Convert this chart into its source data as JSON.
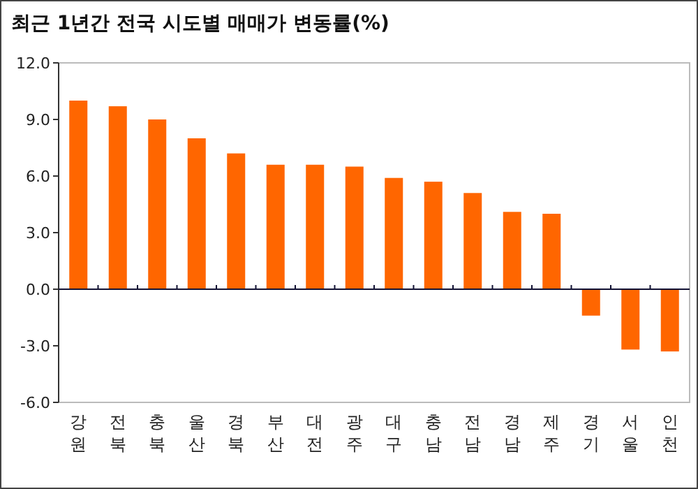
{
  "chart_data": {
    "type": "bar",
    "title": "최근 1년간 전국 시도별 매매가 변동률(%)",
    "categories": [
      "강원",
      "전북",
      "충북",
      "울산",
      "경북",
      "부산",
      "대전",
      "광주",
      "대구",
      "충남",
      "전남",
      "경남",
      "제주",
      "경기",
      "서울",
      "인천"
    ],
    "values": [
      10.0,
      9.7,
      9.0,
      8.0,
      7.2,
      6.6,
      6.6,
      6.5,
      5.9,
      5.7,
      5.1,
      4.1,
      4.0,
      -1.4,
      -3.2,
      -3.3
    ],
    "color": "#ff6600",
    "ylim": [
      -6,
      12
    ],
    "yticks": [
      {
        "value": -6,
        "label": "-6.0"
      },
      {
        "value": -3,
        "label": "-3.0"
      },
      {
        "value": 0,
        "label": "0.0"
      },
      {
        "value": 3,
        "label": "3.0"
      },
      {
        "value": 6,
        "label": "6.0"
      },
      {
        "value": 9,
        "label": "9.0"
      },
      {
        "value": 12,
        "label": "12.0"
      }
    ]
  }
}
